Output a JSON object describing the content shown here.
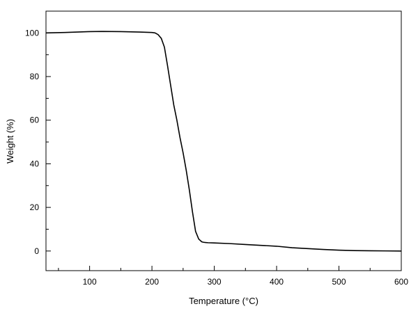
{
  "chart_data": {
    "type": "line",
    "xlabel": "Temperature (°C)",
    "ylabel": "Weight (%)",
    "xlim": [
      30,
      600
    ],
    "ylim": [
      -9,
      110
    ],
    "x_ticks": [
      100,
      200,
      300,
      400,
      500,
      600
    ],
    "y_ticks": [
      0,
      20,
      40,
      60,
      80,
      100
    ],
    "x_tick_labels": [
      "100",
      "200",
      "300",
      "400",
      "500",
      "600"
    ],
    "y_tick_labels": [
      "0",
      "20",
      "40",
      "60",
      "80",
      "100"
    ],
    "grid": false,
    "line_color": "#000000",
    "series": [
      {
        "x": [
          30,
          60,
          80,
          100,
          120,
          150,
          180,
          200,
          205,
          210,
          215,
          220,
          225,
          230,
          235,
          240,
          245,
          250,
          255,
          260,
          265,
          270,
          275,
          280,
          283,
          286,
          290,
          300,
          325,
          350,
          375,
          400,
          425,
          450,
          475,
          500,
          525,
          550,
          575,
          600
        ],
        "y": [
          100,
          100.2,
          100.4,
          100.6,
          100.7,
          100.6,
          100.4,
          100.2,
          100,
          99.2,
          97.5,
          93.5,
          85,
          76,
          67,
          60,
          52,
          45,
          37,
          28,
          18,
          9,
          5.5,
          4.2,
          4.0,
          3.9,
          3.8,
          3.7,
          3.4,
          3.0,
          2.6,
          2.2,
          1.5,
          1.1,
          0.7,
          0.4,
          0.2,
          0.1,
          0.05,
          0
        ]
      }
    ]
  }
}
